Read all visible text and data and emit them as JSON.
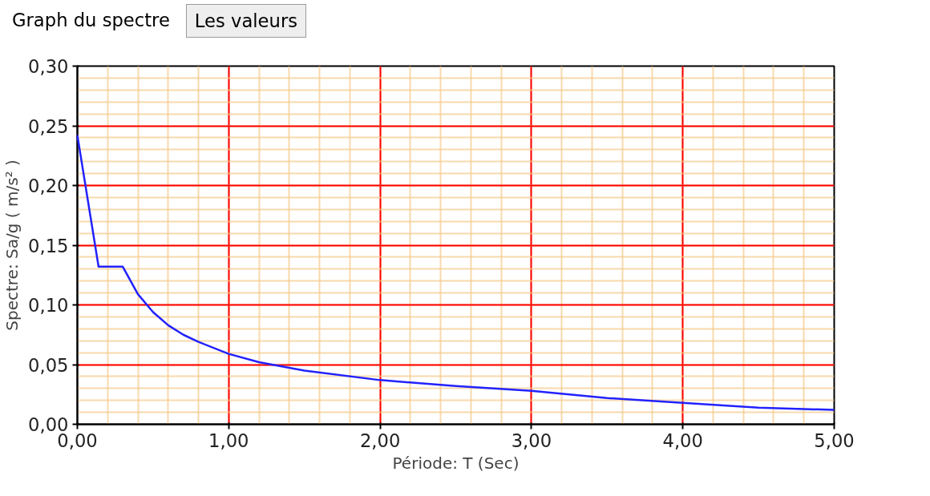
{
  "chart_data": {
    "type": "line",
    "title": "Graph du spectre",
    "annotations": [
      "Les valeurs"
    ],
    "xlabel": "Période: T (Sec)",
    "ylabel": "Spectre: Sa/g ( m/s² )",
    "x": [
      0,
      0.14,
      0.3,
      0.4,
      0.5,
      0.6,
      0.7,
      0.8,
      1.0,
      1.2,
      1.5,
      2.0,
      2.5,
      3.0,
      3.5,
      4.0,
      4.5,
      5.0
    ],
    "series": [
      {
        "color": "#2222ff",
        "values": [
          0.242,
          0.132,
          0.132,
          0.109,
          0.094,
          0.083,
          0.075,
          0.069,
          0.059,
          0.052,
          0.045,
          0.037,
          0.032,
          0.028,
          0.022,
          0.018,
          0.014,
          0.012
        ]
      }
    ],
    "xlim": [
      0,
      5
    ],
    "ylim": [
      0,
      0.3
    ],
    "xticks": [
      {
        "value": 0,
        "label": "0,00"
      },
      {
        "value": 1,
        "label": "1,00"
      },
      {
        "value": 2,
        "label": "2,00"
      },
      {
        "value": 3,
        "label": "3,00"
      },
      {
        "value": 4,
        "label": "4,00"
      },
      {
        "value": 5,
        "label": "5,00"
      }
    ],
    "yticks": [
      {
        "value": 0,
        "label": "0,00"
      },
      {
        "value": 0.05,
        "label": "0,05"
      },
      {
        "value": 0.1,
        "label": "0,10"
      },
      {
        "value": 0.15,
        "label": "0,15"
      },
      {
        "value": 0.2,
        "label": "0,20"
      },
      {
        "value": 0.25,
        "label": "0,25"
      },
      {
        "value": 0.3,
        "label": "0,30"
      }
    ],
    "grid": true,
    "marker": "none",
    "line_style": "solid"
  }
}
